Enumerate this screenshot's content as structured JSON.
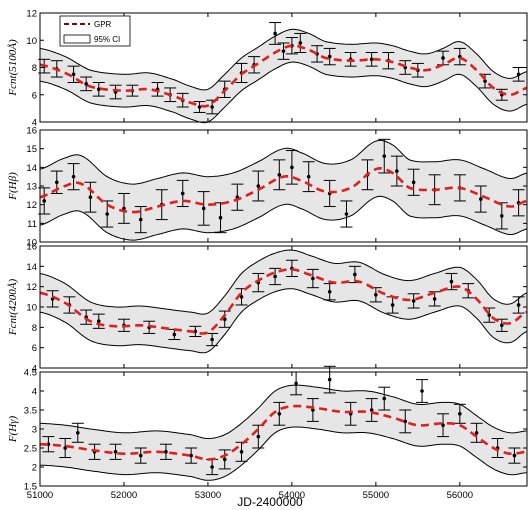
{
  "figure": {
    "xlabel": "JD-2400000",
    "legend": {
      "items": [
        "GPR",
        "95% CI"
      ],
      "placement": "top-left"
    },
    "colors": {
      "gpr": "#e02020",
      "band_fill": "#e6e6e6",
      "band_edge": "#000000",
      "points": "#000000"
    }
  },
  "chart_data": [
    {
      "type": "line",
      "panel": "Fcnt5100",
      "ylabel": "Fcnt(5100Å)",
      "ylim": [
        4,
        12
      ],
      "yticks": [
        4,
        6,
        8,
        10,
        12
      ],
      "xlim": [
        51000,
        56800
      ],
      "xticks": [
        51000,
        52000,
        53000,
        54000,
        55000,
        56000
      ],
      "gpr": {
        "x": [
          51000,
          51300,
          51600,
          52000,
          52300,
          52600,
          52800,
          53000,
          53200,
          53400,
          53600,
          53800,
          54000,
          54200,
          54400,
          54700,
          55000,
          55200,
          55400,
          55600,
          55800,
          56000,
          56200,
          56400,
          56600,
          56800
        ],
        "y": [
          8.2,
          7.6,
          6.6,
          6.3,
          6.4,
          5.9,
          5.4,
          5.2,
          6.3,
          7.5,
          8.3,
          9.1,
          9.6,
          9.3,
          8.7,
          8.5,
          8.6,
          8.4,
          8.0,
          7.8,
          8.2,
          8.7,
          7.8,
          6.5,
          6.0,
          6.5
        ]
      },
      "ci_halfwidth": 1.2,
      "points": [
        [
          51050,
          8.1,
          0.5
        ],
        [
          51200,
          7.9,
          0.6
        ],
        [
          51400,
          7.5,
          0.6
        ],
        [
          51550,
          6.8,
          0.5
        ],
        [
          51700,
          6.4,
          0.5
        ],
        [
          51900,
          6.2,
          0.5
        ],
        [
          52100,
          6.3,
          0.4
        ],
        [
          52400,
          6.4,
          0.5
        ],
        [
          52550,
          6.0,
          0.5
        ],
        [
          52700,
          5.6,
          0.5
        ],
        [
          52900,
          5.1,
          0.4
        ],
        [
          53050,
          5.1,
          0.5
        ],
        [
          53200,
          6.4,
          0.6
        ],
        [
          53400,
          7.6,
          0.7
        ],
        [
          53550,
          8.2,
          0.6
        ],
        [
          53800,
          10.5,
          0.8
        ],
        [
          53900,
          9.2,
          0.6
        ],
        [
          54000,
          9.6,
          0.6
        ],
        [
          54100,
          9.8,
          0.7
        ],
        [
          54300,
          9.0,
          0.6
        ],
        [
          54450,
          8.8,
          0.6
        ],
        [
          54700,
          8.6,
          0.5
        ],
        [
          54950,
          8.6,
          0.5
        ],
        [
          55150,
          8.5,
          0.6
        ],
        [
          55350,
          8.0,
          0.5
        ],
        [
          55500,
          7.8,
          0.5
        ],
        [
          55800,
          8.7,
          0.5
        ],
        [
          56000,
          8.8,
          0.6
        ],
        [
          56300,
          7.0,
          0.5
        ],
        [
          56500,
          6.0,
          0.4
        ],
        [
          56700,
          7.5,
          0.5
        ]
      ]
    },
    {
      "type": "line",
      "panel": "Hbeta",
      "ylabel": "F(Hβ)",
      "ylim": [
        10,
        16
      ],
      "yticks": [
        10,
        11,
        12,
        13,
        14,
        15,
        16
      ],
      "xlim": [
        51000,
        56800
      ],
      "xticks": [
        51000,
        52000,
        53000,
        54000,
        55000,
        56000
      ],
      "gpr": {
        "x": [
          51000,
          51300,
          51500,
          51800,
          52100,
          52400,
          52700,
          53000,
          53300,
          53600,
          53900,
          54100,
          54400,
          54700,
          55000,
          55200,
          55400,
          55700,
          56000,
          56300,
          56600,
          56800
        ],
        "y": [
          12.4,
          13.0,
          13.1,
          12.0,
          11.6,
          11.9,
          12.2,
          12.0,
          12.2,
          12.8,
          13.5,
          13.3,
          12.7,
          12.9,
          13.9,
          13.7,
          12.9,
          12.8,
          12.9,
          12.4,
          11.9,
          12.2
        ]
      },
      "ci_halfwidth": 1.5,
      "points": [
        [
          51050,
          12.2,
          0.7
        ],
        [
          51200,
          13.2,
          0.6
        ],
        [
          51400,
          13.5,
          0.7
        ],
        [
          51600,
          12.4,
          0.8
        ],
        [
          51800,
          11.5,
          0.7
        ],
        [
          52000,
          11.8,
          0.8
        ],
        [
          52200,
          11.2,
          0.7
        ],
        [
          52450,
          12.0,
          0.8
        ],
        [
          52700,
          12.6,
          0.7
        ],
        [
          52950,
          11.8,
          0.9
        ],
        [
          53150,
          11.3,
          0.8
        ],
        [
          53350,
          12.4,
          0.7
        ],
        [
          53600,
          13.0,
          0.8
        ],
        [
          53850,
          13.6,
          0.8
        ],
        [
          54000,
          14.0,
          0.9
        ],
        [
          54200,
          13.5,
          0.8
        ],
        [
          54450,
          12.6,
          0.7
        ],
        [
          54650,
          11.5,
          0.7
        ],
        [
          54900,
          13.6,
          0.8
        ],
        [
          55100,
          14.6,
          0.9
        ],
        [
          55250,
          13.8,
          0.8
        ],
        [
          55450,
          13.2,
          0.7
        ],
        [
          55700,
          12.8,
          0.8
        ],
        [
          56000,
          12.9,
          0.7
        ],
        [
          56250,
          12.3,
          0.7
        ],
        [
          56500,
          11.4,
          0.7
        ],
        [
          56700,
          12.1,
          0.7
        ]
      ]
    },
    {
      "type": "line",
      "panel": "Fcnt4200",
      "ylabel": "Fcnt(4200Å)",
      "ylim": [
        4,
        16
      ],
      "yticks": [
        4,
        6,
        8,
        10,
        12,
        14,
        16
      ],
      "xlim": [
        51000,
        56800
      ],
      "xticks": [
        51000,
        52000,
        53000,
        54000,
        55000,
        56000
      ],
      "gpr": {
        "x": [
          51000,
          51300,
          51600,
          51900,
          52200,
          52500,
          52800,
          53000,
          53200,
          53400,
          53600,
          53800,
          54000,
          54200,
          54500,
          54800,
          55100,
          55400,
          55700,
          56000,
          56200,
          56400,
          56600,
          56800
        ],
        "y": [
          11.4,
          10.4,
          8.6,
          8.1,
          8.2,
          7.9,
          7.6,
          7.5,
          9.2,
          11.4,
          12.6,
          13.4,
          13.7,
          13.2,
          12.4,
          12.5,
          11.3,
          10.7,
          11.4,
          12.0,
          10.8,
          8.9,
          8.4,
          9.5
        ]
      },
      "ci_halfwidth": 1.9,
      "points": [
        [
          51150,
          10.8,
          0.8
        ],
        [
          51350,
          10.2,
          0.8
        ],
        [
          51550,
          9.0,
          0.7
        ],
        [
          51700,
          8.6,
          0.7
        ],
        [
          52000,
          8.2,
          0.6
        ],
        [
          52300,
          8.0,
          0.6
        ],
        [
          52600,
          7.3,
          0.5
        ],
        [
          52850,
          7.6,
          0.5
        ],
        [
          53050,
          6.8,
          0.6
        ],
        [
          53200,
          8.8,
          0.8
        ],
        [
          53400,
          11.0,
          0.8
        ],
        [
          53600,
          12.4,
          0.9
        ],
        [
          53800,
          13.0,
          0.8
        ],
        [
          54000,
          13.8,
          0.8
        ],
        [
          54250,
          12.8,
          0.9
        ],
        [
          54450,
          11.5,
          0.8
        ],
        [
          54750,
          13.2,
          0.8
        ],
        [
          55000,
          11.2,
          0.7
        ],
        [
          55200,
          10.2,
          0.8
        ],
        [
          55450,
          10.6,
          0.7
        ],
        [
          55700,
          10.8,
          0.7
        ],
        [
          55900,
          12.5,
          0.8
        ],
        [
          56100,
          11.6,
          0.7
        ],
        [
          56350,
          9.2,
          0.7
        ],
        [
          56500,
          8.2,
          0.6
        ],
        [
          56700,
          10.2,
          0.8
        ]
      ]
    },
    {
      "type": "line",
      "panel": "Hgamma",
      "ylabel": "F(Hγ)",
      "ylim": [
        1.5,
        4.5
      ],
      "yticks": [
        1.5,
        2,
        2.5,
        3,
        3.5,
        4,
        4.5
      ],
      "xlim": [
        51000,
        56800
      ],
      "xticks": [
        51000,
        52000,
        53000,
        54000,
        55000,
        56000
      ],
      "gpr": {
        "x": [
          51000,
          51300,
          51600,
          52000,
          52400,
          52800,
          53000,
          53200,
          53400,
          53600,
          53800,
          54000,
          54300,
          54600,
          54900,
          55200,
          55500,
          55800,
          56000,
          56200,
          56400,
          56600,
          56800
        ],
        "y": [
          2.6,
          2.55,
          2.45,
          2.35,
          2.4,
          2.3,
          2.2,
          2.3,
          2.6,
          3.0,
          3.45,
          3.6,
          3.55,
          3.45,
          3.45,
          3.3,
          3.1,
          3.15,
          3.1,
          2.8,
          2.5,
          2.35,
          2.4
        ]
      },
      "ci_halfwidth": 0.55,
      "points": [
        [
          51100,
          2.6,
          0.2
        ],
        [
          51300,
          2.5,
          0.25
        ],
        [
          51450,
          2.9,
          0.25
        ],
        [
          51650,
          2.4,
          0.2
        ],
        [
          51900,
          2.4,
          0.2
        ],
        [
          52200,
          2.3,
          0.2
        ],
        [
          52500,
          2.4,
          0.2
        ],
        [
          52800,
          2.3,
          0.2
        ],
        [
          53050,
          2.0,
          0.2
        ],
        [
          53200,
          2.2,
          0.25
        ],
        [
          53400,
          2.4,
          0.25
        ],
        [
          53600,
          2.8,
          0.3
        ],
        [
          53850,
          3.4,
          0.3
        ],
        [
          54050,
          4.2,
          0.3
        ],
        [
          54250,
          3.5,
          0.3
        ],
        [
          54450,
          4.3,
          0.35
        ],
        [
          54700,
          3.4,
          0.3
        ],
        [
          54950,
          3.5,
          0.3
        ],
        [
          55100,
          3.8,
          0.3
        ],
        [
          55350,
          3.2,
          0.3
        ],
        [
          55550,
          4.0,
          0.3
        ],
        [
          55800,
          3.1,
          0.3
        ],
        [
          56000,
          3.4,
          0.25
        ],
        [
          56200,
          2.9,
          0.25
        ],
        [
          56450,
          2.5,
          0.25
        ],
        [
          56650,
          2.3,
          0.2
        ]
      ]
    }
  ]
}
